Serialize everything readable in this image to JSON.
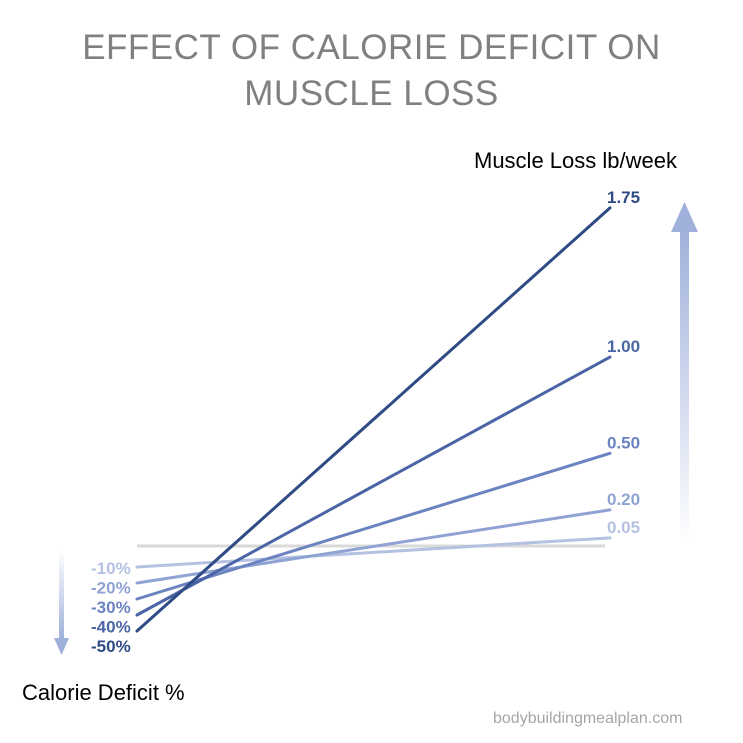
{
  "title_line_1": "EFFECT OF CALORIE DEFICIT ON",
  "title_line_2": "MUSCLE LOSS",
  "watermark": "bodybuildingmealplan.com",
  "chart_data": {
    "type": "line",
    "title": "EFFECT OF CALORIE DEFICIT ON MUSCLE LOSS",
    "xlabel": "Calorie Deficit %",
    "ylabel": "Muscle Loss lb/week",
    "series": [
      {
        "name": "-10%",
        "deficit_label": "-10%",
        "muscle_loss_label": "0.05",
        "muscle_loss": 0.05,
        "color": "#b4c1e2"
      },
      {
        "name": "-20%",
        "deficit_label": "-20%",
        "muscle_loss_label": "0.20",
        "muscle_loss": 0.2,
        "color": "#8fa3d3"
      },
      {
        "name": "-30%",
        "deficit_label": "-30%",
        "muscle_loss_label": "0.50",
        "muscle_loss": 0.5,
        "color": "#6b83c1"
      },
      {
        "name": "-40%",
        "deficit_label": "-40%",
        "muscle_loss_label": "1.00",
        "muscle_loss": 1.0,
        "color": "#4a64a6"
      },
      {
        "name": "-50%",
        "deficit_label": "-50%",
        "muscle_loss_label": "1.75",
        "muscle_loss": 1.75,
        "color": "#2f4b85"
      }
    ],
    "baseline_color": "#d9d9d9",
    "arrow_color": "#9fb0da"
  }
}
